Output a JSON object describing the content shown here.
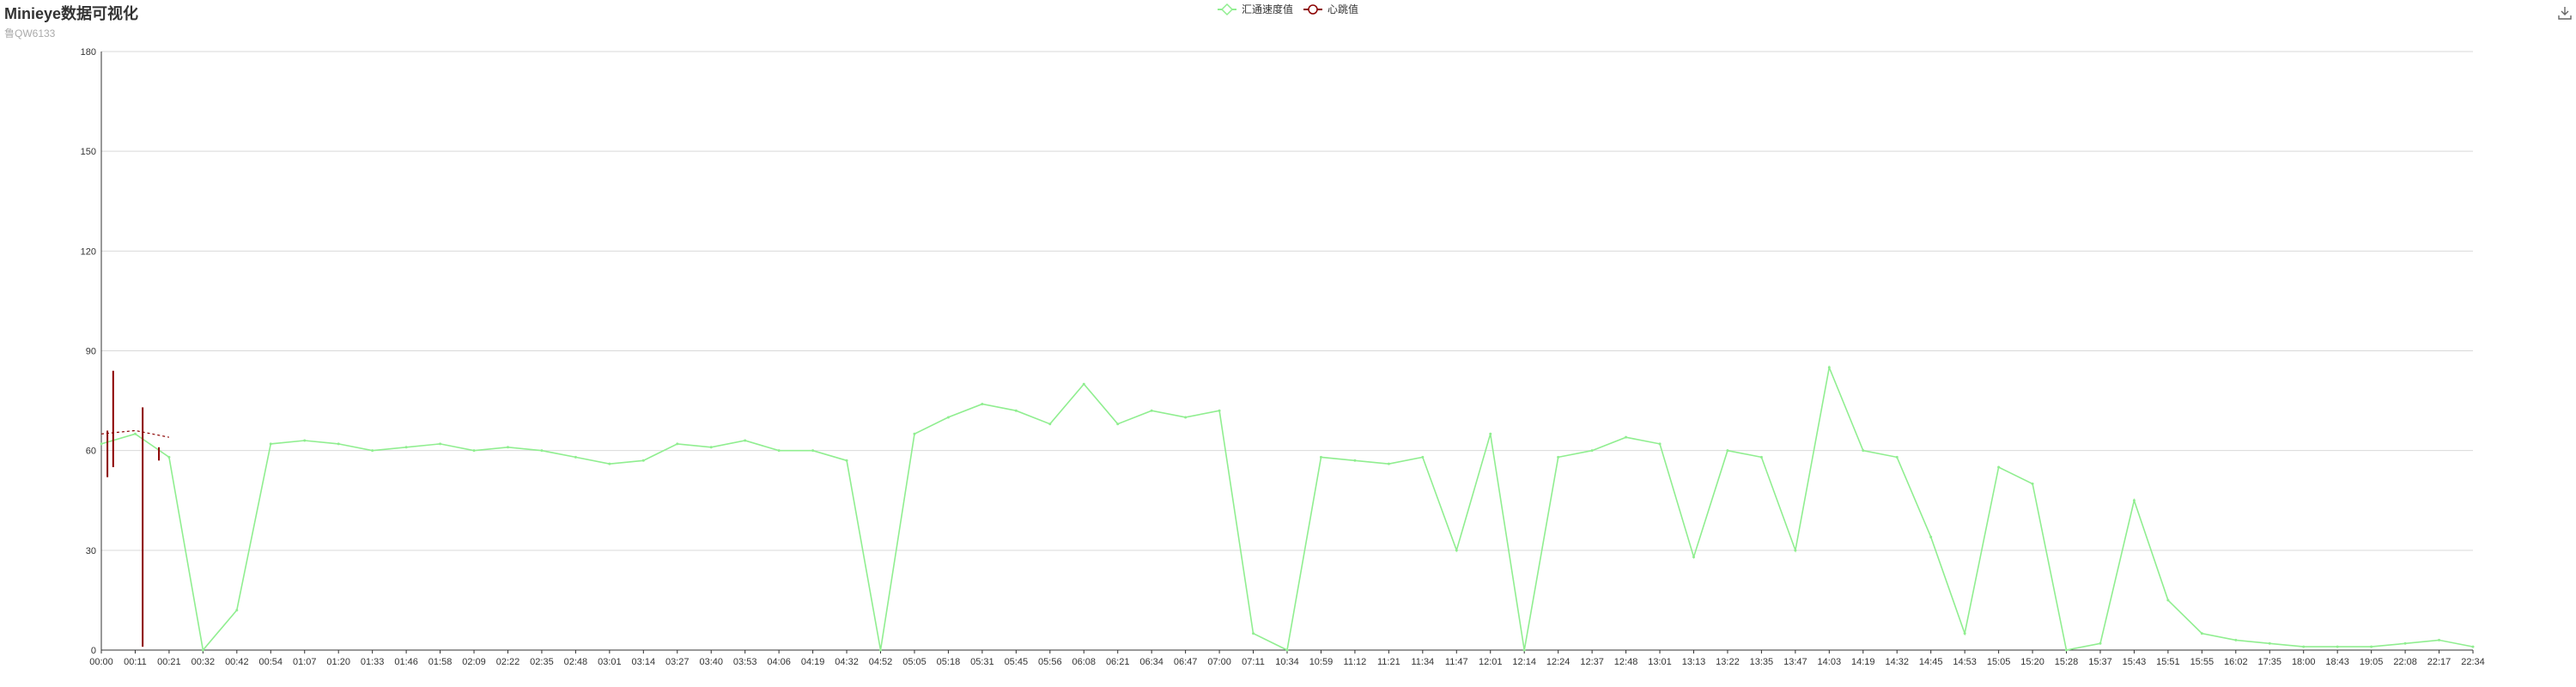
{
  "title": "Minieye数据可视化",
  "subtitle": "鲁QW6133",
  "toolbox": {
    "download_icon": "download-icon"
  },
  "chart_data": {
    "type": "line",
    "title": "Minieye数据可视化",
    "subtitle": "鲁QW6133",
    "xlabel": "",
    "ylabel": "",
    "ylim": [
      0,
      180
    ],
    "yticks": [
      0,
      30,
      60,
      90,
      120,
      150,
      180
    ],
    "grid": true,
    "legend_position": "top-center",
    "categories": [
      "00:00",
      "00:11",
      "00:21",
      "00:32",
      "00:42",
      "00:54",
      "01:07",
      "01:20",
      "01:33",
      "01:46",
      "01:58",
      "02:09",
      "02:22",
      "02:35",
      "02:48",
      "03:01",
      "03:14",
      "03:27",
      "03:40",
      "03:53",
      "04:06",
      "04:19",
      "04:32",
      "04:52",
      "05:05",
      "05:18",
      "05:31",
      "05:45",
      "05:56",
      "06:08",
      "06:21",
      "06:34",
      "06:47",
      "07:00",
      "07:11",
      "10:34",
      "10:59",
      "11:12",
      "11:21",
      "11:34",
      "11:47",
      "12:01",
      "12:14",
      "12:24",
      "12:37",
      "12:48",
      "13:01",
      "13:13",
      "13:22",
      "13:35",
      "13:47",
      "14:03",
      "14:19",
      "14:32",
      "14:45",
      "14:53",
      "15:05",
      "15:20",
      "15:28",
      "15:37",
      "15:43",
      "15:51",
      "15:55",
      "16:02",
      "17:35",
      "18:00",
      "18:43",
      "19:05",
      "22:08",
      "22:17",
      "22:34"
    ],
    "series": [
      {
        "name": "汇通速度值",
        "color": "#90ee90",
        "marker": "diamond",
        "values": [
          62,
          65,
          58,
          0,
          12,
          62,
          63,
          62,
          60,
          61,
          62,
          60,
          61,
          60,
          58,
          56,
          57,
          62,
          61,
          63,
          60,
          60,
          57,
          0,
          65,
          70,
          74,
          72,
          68,
          80,
          68,
          72,
          70,
          72,
          5,
          0,
          58,
          57,
          56,
          58,
          30,
          65,
          0,
          58,
          60,
          64,
          62,
          28,
          60,
          58,
          30,
          85,
          60,
          58,
          34,
          5,
          55,
          50,
          0,
          2,
          45,
          15,
          5,
          3,
          2,
          1,
          1,
          1,
          2,
          3,
          1
        ]
      },
      {
        "name": "心跳值",
        "color": "#8b0000",
        "marker": "circle",
        "values": [
          65,
          66,
          64,
          null,
          null,
          null,
          null,
          null,
          null,
          null,
          null,
          null,
          null,
          null,
          null,
          null,
          null,
          null,
          null,
          null,
          null,
          null,
          null,
          null,
          null,
          null,
          null,
          null,
          null,
          null,
          null,
          null,
          null,
          null,
          null,
          null,
          null,
          null,
          null,
          null,
          null,
          null,
          null,
          null,
          null,
          null,
          null,
          null,
          null,
          null,
          null,
          null,
          null,
          null,
          null,
          null,
          null,
          null,
          null,
          null,
          null,
          null,
          null,
          null,
          null,
          null,
          null,
          null,
          null,
          null,
          null
        ]
      }
    ],
    "heartbeat_segments": [
      {
        "category_pos": 0.18,
        "low": 52,
        "high": 66
      },
      {
        "category_pos": 0.35,
        "low": 55,
        "high": 84
      },
      {
        "category_pos": 1.22,
        "low": 1,
        "high": 73
      },
      {
        "category_pos": 1.7,
        "low": 57,
        "high": 61
      }
    ]
  }
}
